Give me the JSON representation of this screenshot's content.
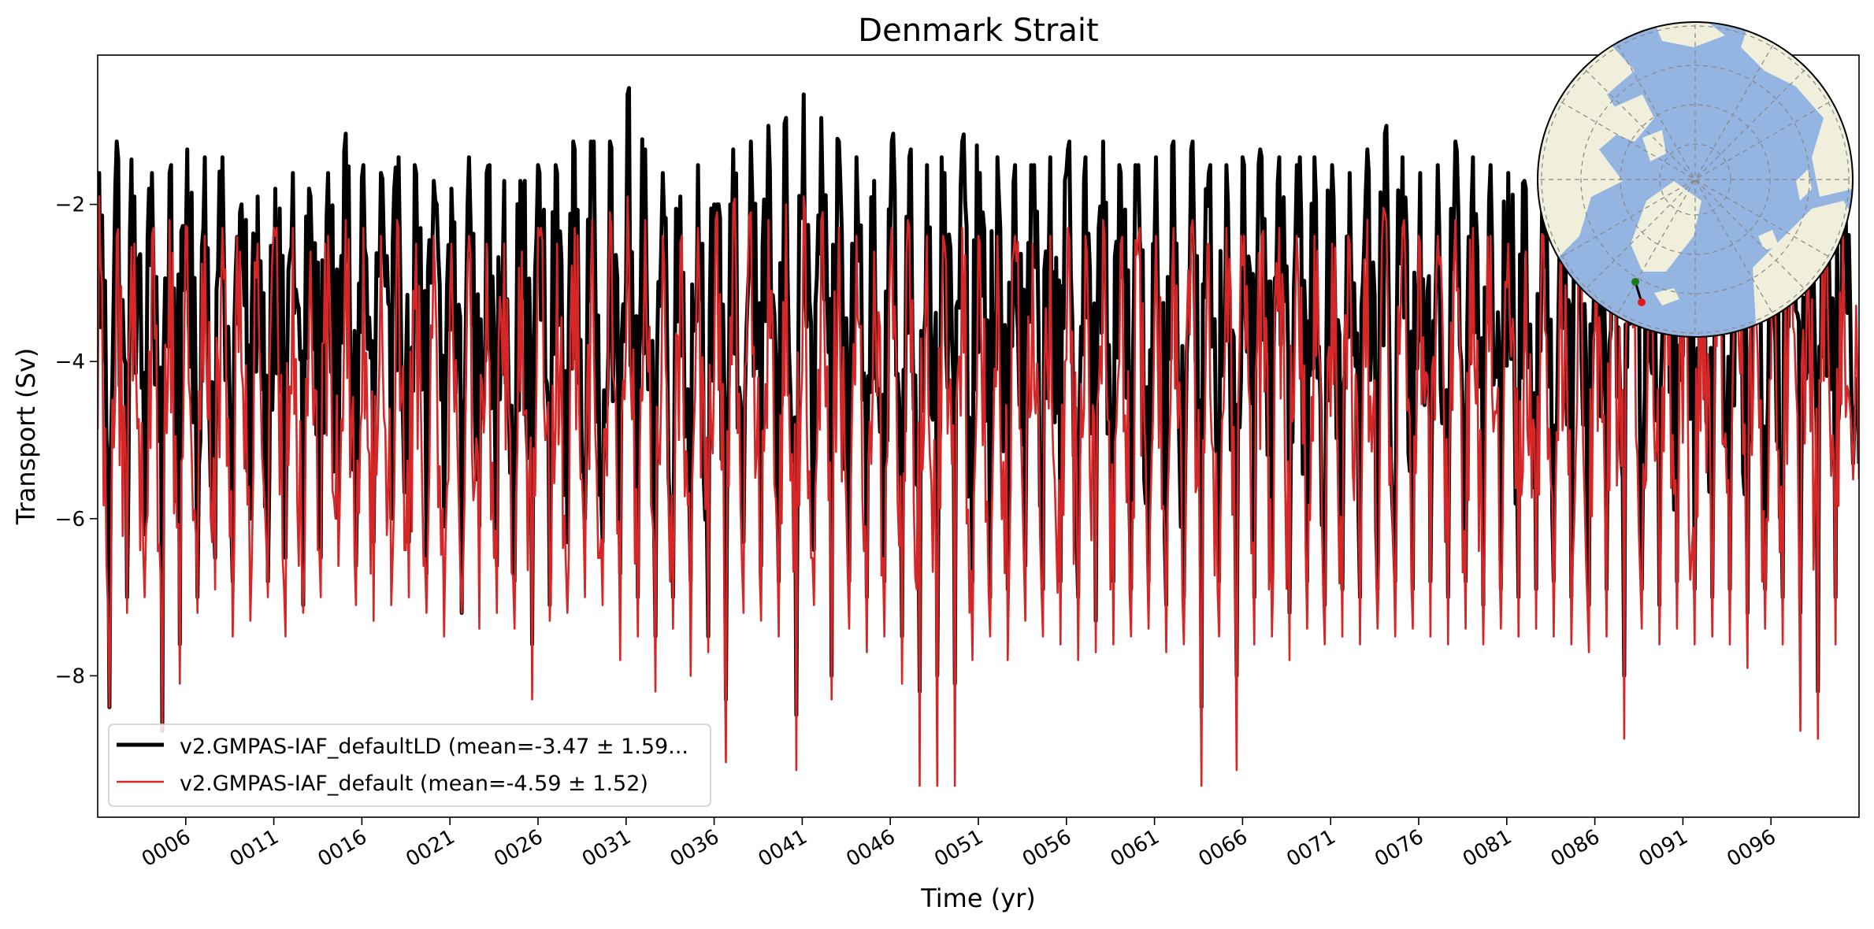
{
  "chart_data": {
    "type": "line",
    "title": "Denmark Strait",
    "xlabel": "Time (yr)",
    "ylabel": "Transport (Sv)",
    "xlim": [
      1,
      101
    ],
    "ylim": [
      -9.8,
      -0.1
    ],
    "x_unit": "year",
    "x_ticks": [
      6,
      11,
      16,
      21,
      26,
      31,
      36,
      41,
      46,
      51,
      56,
      61,
      66,
      71,
      76,
      81,
      86,
      91,
      96
    ],
    "x_tick_labels": [
      "0006",
      "0011",
      "0016",
      "0021",
      "0026",
      "0031",
      "0036",
      "0041",
      "0046",
      "0051",
      "0056",
      "0061",
      "0066",
      "0071",
      "0076",
      "0081",
      "0086",
      "0091",
      "0096"
    ],
    "y_ticks": [
      -8,
      -6,
      -4,
      -2
    ],
    "y_tick_labels": [
      "−8",
      "−6",
      "−4",
      "−2"
    ],
    "grid": false,
    "legend_position": "lower-left",
    "samples_per_year": 12,
    "series": [
      {
        "name": "v2.GMPAS-IAF_defaultLD (mean=-3.47 ± 1.59...",
        "color": "#000000",
        "mean": -3.47,
        "std": 1.59,
        "annual_peak_max": [
          -1.6,
          -1.2,
          -1.9,
          -1.6,
          -1.6,
          -1.3,
          -1.4,
          -1.4,
          -2.1,
          -1.9,
          -1.8,
          -1.6,
          -1.9,
          -1.6,
          -1.1,
          -1.5,
          -1.6,
          -1.4,
          -1.6,
          -1.7,
          -1.8,
          -1.4,
          -1.6,
          -1.7,
          -1.8,
          -1.6,
          -1.6,
          -1.3,
          -1.3,
          -1.2,
          -0.6,
          -1.3,
          -1.6,
          -1.9,
          -1.5,
          -2.1,
          -1.3,
          -1.2,
          -1.0,
          -0.9,
          -0.6,
          -0.9,
          -1.2,
          -1.4,
          -1.7,
          -1.2,
          -1.4,
          -1.5,
          -1.6,
          -1.2,
          -1.6,
          -1.4,
          -1.5,
          -1.6,
          -1.4,
          -1.3,
          -1.4,
          -1.2,
          -1.6,
          -1.5,
          -1.4,
          -1.2,
          -1.3,
          -1.6,
          -1.5,
          -1.5,
          -1.4,
          -1.4,
          -1.5,
          -1.4,
          -1.5,
          -1.6,
          -1.3,
          -1.1,
          -1.4,
          -1.6,
          -1.5,
          -1.2,
          -1.4,
          -1.5,
          -1.6,
          -1.8,
          -1.5,
          -1.3,
          -1.2,
          -1.4,
          -1.8,
          -1.6,
          -1.9,
          -1.8,
          -1.3,
          -1.2,
          -1.5,
          -1.7,
          -1.4,
          -1.5,
          -1.8,
          -1.6,
          -1.6,
          -1.5
        ],
        "annual_trough_min": [
          -8.4,
          -7.0,
          -6.2,
          -8.7,
          -7.6,
          -7.0,
          -6.5,
          -6.8,
          -6.0,
          -6.8,
          -6.5,
          -7.1,
          -6.5,
          -6.0,
          -6.6,
          -6.3,
          -6.0,
          -6.3,
          -6.7,
          -6.1,
          -7.2,
          -6.1,
          -6.6,
          -6.8,
          -7.6,
          -7.1,
          -6.3,
          -6.0,
          -6.3,
          -6.7,
          -7.0,
          -7.5,
          -7.0,
          -6.8,
          -7.5,
          -8.3,
          -6.3,
          -6.6,
          -6.8,
          -8.5,
          -6.4,
          -8.0,
          -6.8,
          -7.0,
          -6.8,
          -7.5,
          -8.2,
          -8.0,
          -8.1,
          -6.8,
          -7.0,
          -6.9,
          -6.6,
          -6.9,
          -6.8,
          -7.0,
          -7.3,
          -6.8,
          -6.9,
          -6.8,
          -7.1,
          -7.0,
          -8.4,
          -6.8,
          -8.0,
          -7.0,
          -6.8,
          -7.2,
          -6.8,
          -7.1,
          -6.9,
          -7.0,
          -6.9,
          -6.8,
          -6.9,
          -6.8,
          -7.0,
          -6.8,
          -7.1,
          -6.9,
          -7.0,
          -6.9,
          -6.8,
          -7.0,
          -7.1,
          -6.9,
          -8.0,
          -6.9,
          -7.1,
          -6.8,
          -6.9,
          -7.0,
          -6.9,
          -7.2,
          -6.9,
          -7.0,
          -7.2,
          -8.2,
          -7.0,
          -5.3
        ]
      },
      {
        "name": "v2.GMPAS-IAF_default (mean=-4.59 ± 1.52)",
        "color": "#d62728",
        "mean": -4.59,
        "std": 1.52,
        "annual_peak_max": [
          -1.9,
          -2.4,
          -2.5,
          -2.4,
          -2.2,
          -2.3,
          -2.4,
          -2.3,
          -2.6,
          -2.5,
          -2.4,
          -2.3,
          -2.6,
          -2.4,
          -2.2,
          -2.3,
          -2.4,
          -2.3,
          -2.5,
          -2.4,
          -2.5,
          -2.4,
          -2.5,
          -2.5,
          -2.6,
          -2.4,
          -2.5,
          -2.3,
          -2.2,
          -2.1,
          -1.9,
          -2.2,
          -2.4,
          -2.5,
          -2.3,
          -2.2,
          -2.0,
          -2.1,
          -2.2,
          -2.0,
          -1.9,
          -2.2,
          -2.3,
          -2.4,
          -2.6,
          -2.3,
          -2.3,
          -2.4,
          -2.5,
          -2.3,
          -2.5,
          -2.4,
          -2.4,
          -2.5,
          -2.4,
          -2.3,
          -2.4,
          -2.2,
          -2.5,
          -2.4,
          -2.4,
          -2.3,
          -2.3,
          -2.5,
          -2.3,
          -2.4,
          -2.4,
          -2.3,
          -2.4,
          -2.4,
          -2.5,
          -2.5,
          -2.2,
          -2.1,
          -2.3,
          -2.5,
          -2.4,
          -2.2,
          -2.3,
          -2.4,
          -2.5,
          -2.6,
          -2.4,
          -2.3,
          -2.2,
          -2.4,
          -2.6,
          -2.5,
          -2.6,
          -2.5,
          -2.3,
          -2.2,
          -2.4,
          -2.5,
          -2.3,
          -2.4,
          -2.6,
          -2.5,
          -2.5,
          -2.4
        ],
        "annual_trough_min": [
          -8.4,
          -7.2,
          -7.0,
          -8.7,
          -8.1,
          -7.2,
          -6.9,
          -7.5,
          -7.3,
          -7.0,
          -7.5,
          -7.2,
          -7.0,
          -6.6,
          -7.1,
          -7.3,
          -7.1,
          -7.0,
          -7.2,
          -7.5,
          -7.2,
          -7.4,
          -7.2,
          -7.4,
          -8.3,
          -7.3,
          -7.2,
          -7.0,
          -7.1,
          -7.8,
          -7.5,
          -8.2,
          -7.4,
          -8.0,
          -7.7,
          -9.1,
          -7.2,
          -7.3,
          -7.5,
          -9.2,
          -7.1,
          -8.3,
          -7.4,
          -7.7,
          -7.5,
          -8.1,
          -9.4,
          -9.4,
          -9.4,
          -7.8,
          -7.5,
          -7.8,
          -7.3,
          -7.5,
          -7.6,
          -7.8,
          -7.7,
          -7.6,
          -7.5,
          -7.4,
          -7.7,
          -7.6,
          -9.4,
          -7.5,
          -9.2,
          -7.6,
          -7.5,
          -7.8,
          -7.4,
          -7.6,
          -7.5,
          -7.6,
          -7.4,
          -7.5,
          -7.4,
          -7.5,
          -7.6,
          -7.4,
          -7.6,
          -7.4,
          -7.5,
          -7.4,
          -7.5,
          -7.6,
          -7.7,
          -7.5,
          -8.8,
          -7.4,
          -7.6,
          -7.4,
          -7.6,
          -7.5,
          -7.6,
          -7.9,
          -7.4,
          -7.6,
          -8.7,
          -8.8,
          -7.6,
          -5.5
        ]
      }
    ]
  },
  "inset_map": {
    "description_name": "arctic-inset-map",
    "ocean_color": "#94b4e2",
    "land_color": "#efefdb",
    "section_start_color": "#1a7a1a",
    "section_end_color": "#e01a1a"
  }
}
